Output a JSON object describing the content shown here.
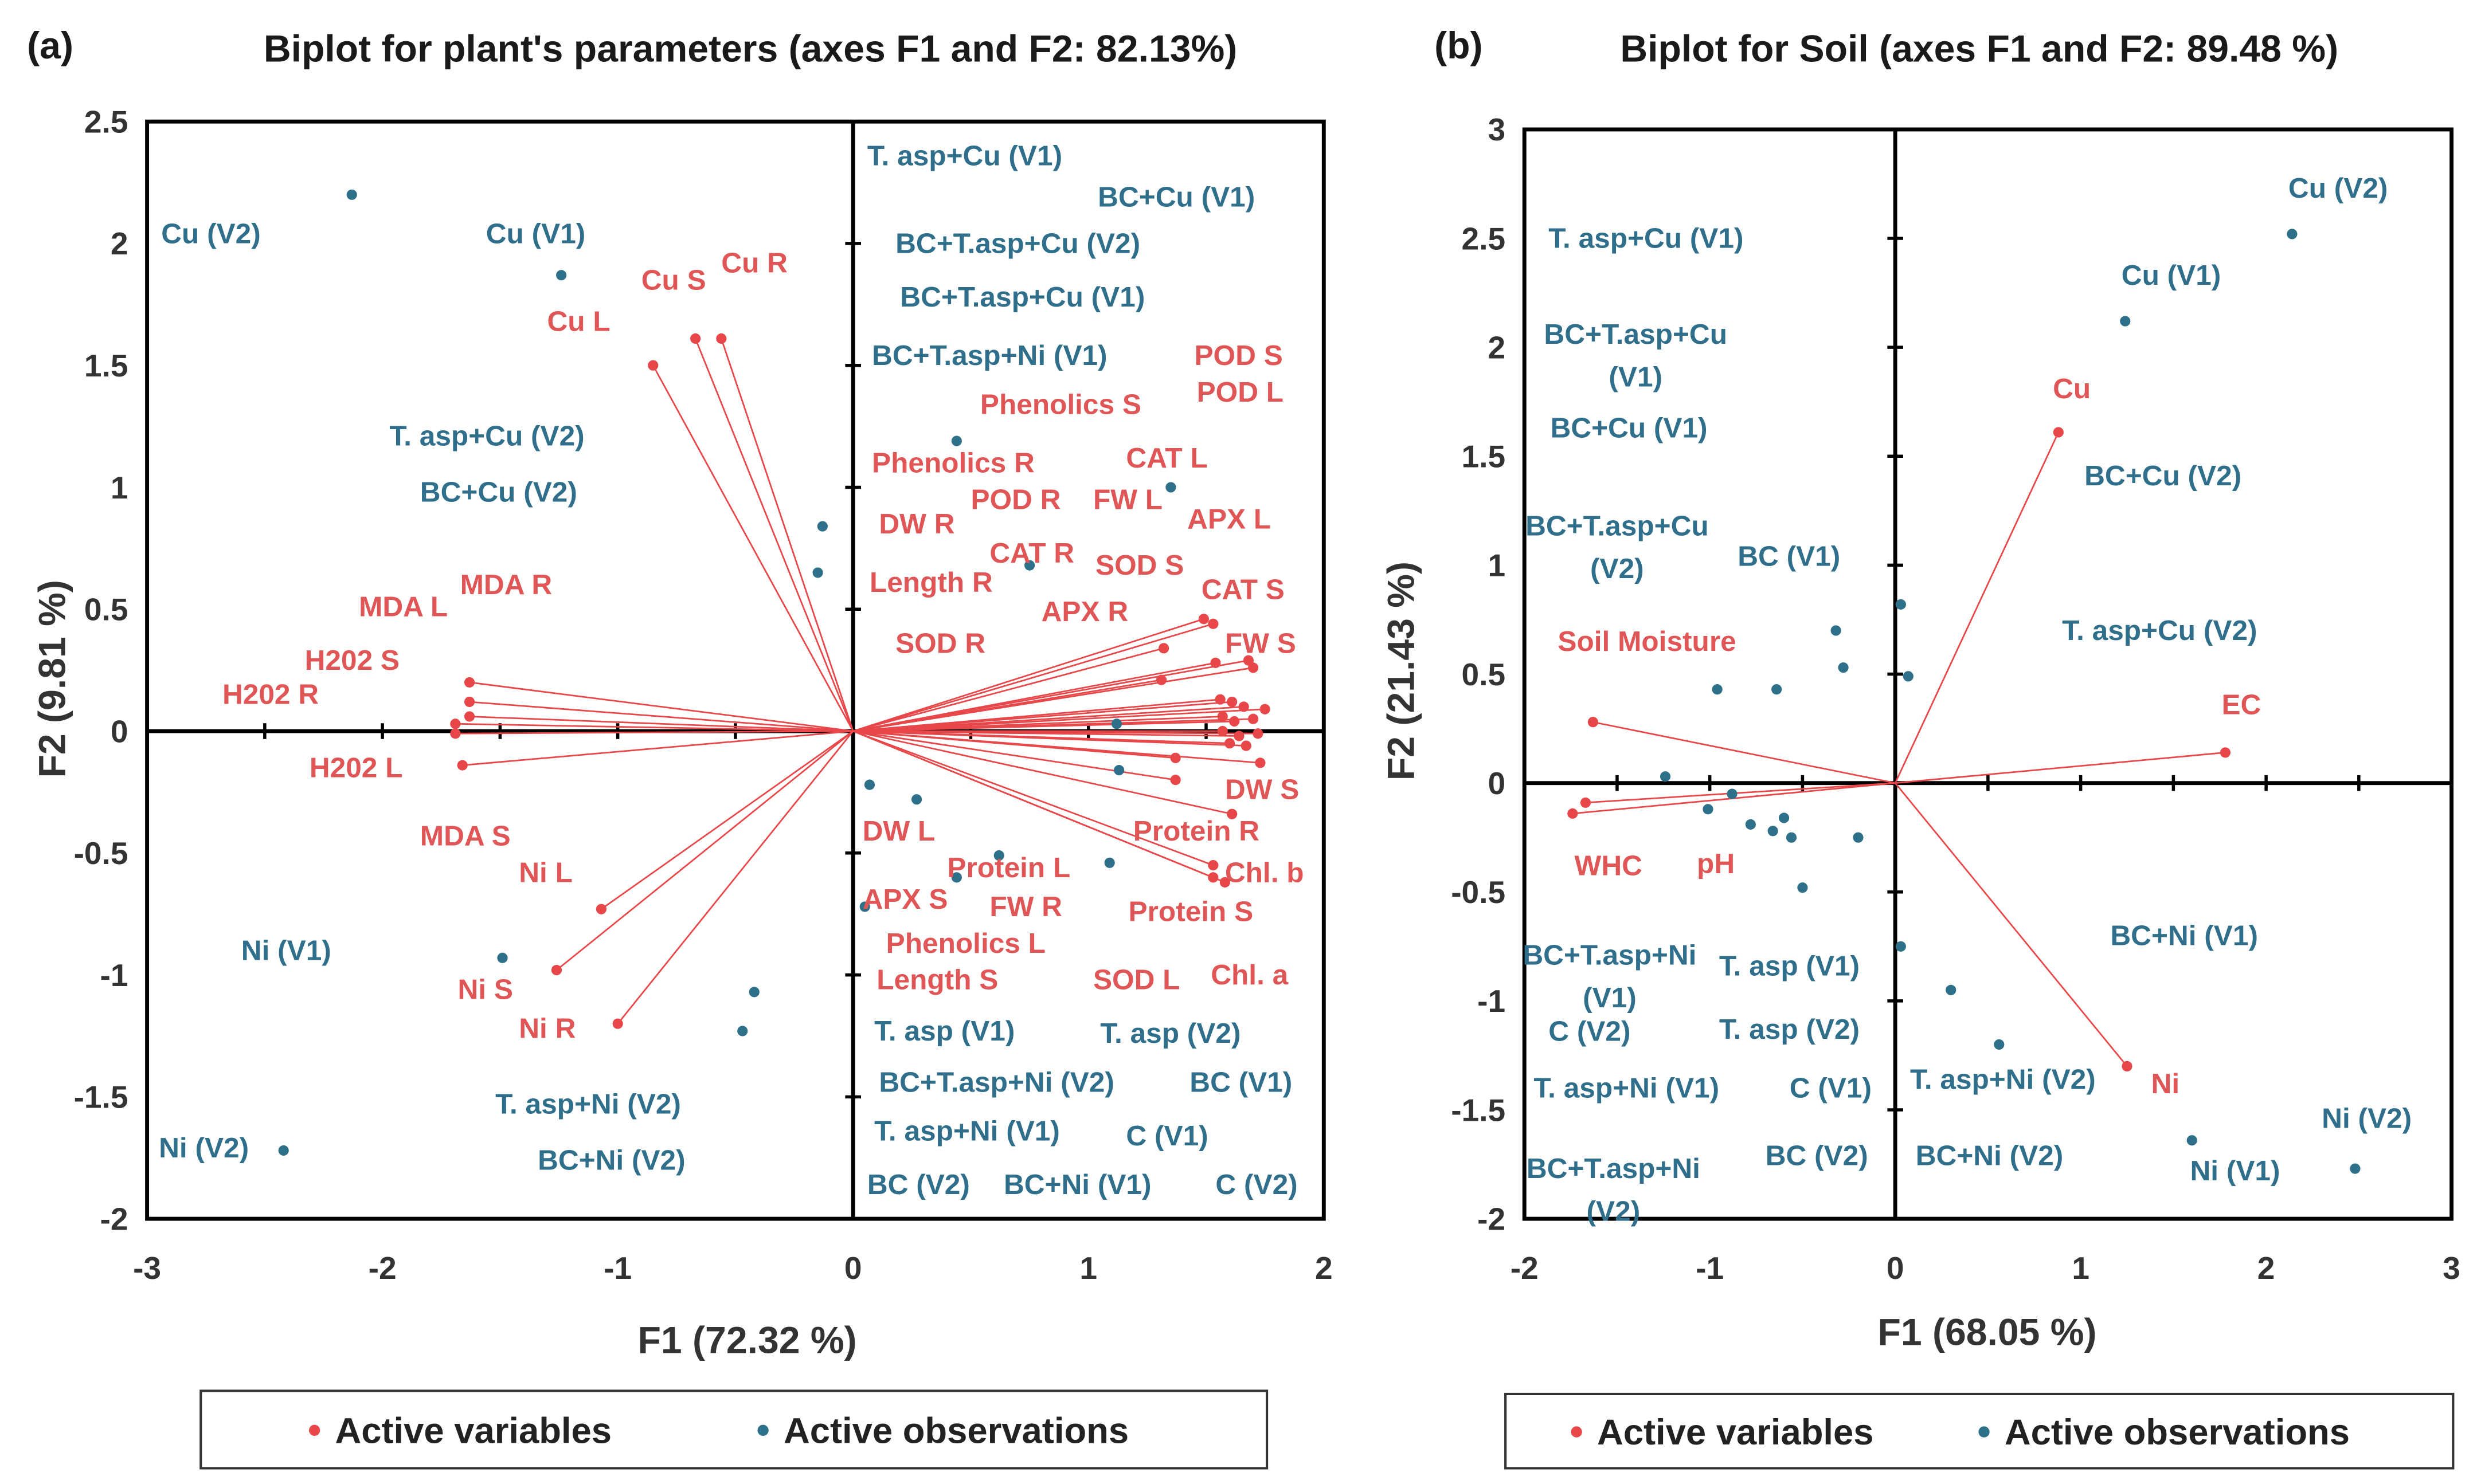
{
  "colors": {
    "variable": "#e8474a",
    "variable_text": "#e05555",
    "observation": "#2e6f8a",
    "observation_text": "#2f6f8c",
    "axis": "#000000"
  },
  "chart_data": [
    {
      "type": "scatter",
      "panel": "(a)",
      "title": "Biplot for plant's parameters (axes F1 and F2: 82.13%)",
      "xlabel": "F1 (72.32 %)",
      "ylabel": "F2 (9.81 %)",
      "xlim": [
        -3,
        2
      ],
      "ylim": [
        -2,
        2.5
      ],
      "xticks": [
        -3,
        -2,
        -1,
        0,
        1,
        2
      ],
      "yticks": [
        -2,
        -1.5,
        -1,
        -0.5,
        0,
        0.5,
        1,
        1.5,
        2,
        2.5
      ],
      "minor_step_x": 0.5,
      "minor_step_y": 0.5,
      "legend": {
        "position": "bottom",
        "items": [
          "Active variables",
          "Active observations"
        ]
      },
      "variables": [
        [
          -0.85,
          1.5
        ],
        [
          -0.67,
          1.61
        ],
        [
          -0.56,
          1.61
        ],
        [
          -1.63,
          0.2
        ],
        [
          -1.63,
          0.12
        ],
        [
          -1.63,
          0.06
        ],
        [
          -1.69,
          0.03
        ],
        [
          -1.69,
          -0.01
        ],
        [
          -1.66,
          -0.14
        ],
        [
          -1.07,
          -0.73
        ],
        [
          -1.26,
          -0.98
        ],
        [
          -1.0,
          -1.2
        ],
        [
          1.49,
          0.46
        ],
        [
          1.53,
          0.44
        ],
        [
          1.32,
          0.34
        ],
        [
          1.68,
          0.29
        ],
        [
          1.7,
          0.26
        ],
        [
          1.54,
          0.28
        ],
        [
          1.31,
          0.21
        ],
        [
          1.56,
          0.13
        ],
        [
          1.61,
          0.12
        ],
        [
          1.66,
          0.1
        ],
        [
          1.75,
          0.09
        ],
        [
          1.57,
          0.06
        ],
        [
          1.62,
          0.04
        ],
        [
          1.7,
          0.05
        ],
        [
          1.57,
          0.0
        ],
        [
          1.64,
          -0.02
        ],
        [
          1.72,
          -0.01
        ],
        [
          1.6,
          -0.05
        ],
        [
          1.67,
          -0.06
        ],
        [
          1.73,
          -0.13
        ],
        [
          1.37,
          -0.11
        ],
        [
          1.37,
          -0.2
        ],
        [
          1.61,
          -0.34
        ],
        [
          1.53,
          -0.55
        ],
        [
          1.53,
          -0.6
        ],
        [
          1.58,
          -0.62
        ]
      ],
      "observations": [
        [
          -2.13,
          2.2
        ],
        [
          -1.24,
          1.87
        ],
        [
          -0.13,
          0.84
        ],
        [
          -0.15,
          0.65
        ],
        [
          0.44,
          1.19
        ],
        [
          1.35,
          1.0
        ],
        [
          0.75,
          0.68
        ],
        [
          1.12,
          0.03
        ],
        [
          1.13,
          -0.16
        ],
        [
          0.07,
          -0.22
        ],
        [
          0.27,
          -0.28
        ],
        [
          0.62,
          -0.51
        ],
        [
          0.44,
          -0.6
        ],
        [
          0.05,
          -0.72
        ],
        [
          1.09,
          -0.54
        ],
        [
          -1.49,
          -0.93
        ],
        [
          -0.42,
          -1.07
        ],
        [
          -0.47,
          -1.23
        ],
        [
          -2.42,
          -1.72
        ]
      ],
      "labels": [
        {
          "t": "Cu (V2)",
          "k": "o",
          "at": [
            -2.94,
            2.04
          ]
        },
        {
          "t": "Cu (V1)",
          "k": "o",
          "at": [
            -1.56,
            2.04
          ]
        },
        {
          "t": "Cu S",
          "k": "v",
          "at": [
            -0.9,
            1.85
          ]
        },
        {
          "t": "Cu R",
          "k": "v",
          "at": [
            -0.56,
            1.92
          ]
        },
        {
          "t": "Cu L",
          "k": "v",
          "at": [
            -1.3,
            1.68
          ]
        },
        {
          "t": "T. asp+Cu (V2)",
          "k": "o",
          "at": [
            -1.97,
            1.21
          ]
        },
        {
          "t": "BC+Cu (V2)",
          "k": "o",
          "at": [
            -1.84,
            0.98
          ]
        },
        {
          "t": "MDA  R",
          "k": "v",
          "at": [
            -1.67,
            0.6
          ]
        },
        {
          "t": "MDA  L",
          "k": "v",
          "at": [
            -2.1,
            0.51
          ]
        },
        {
          "t": "H202  S",
          "k": "v",
          "at": [
            -2.33,
            0.29
          ]
        },
        {
          "t": "H202  R",
          "k": "v",
          "at": [
            -2.68,
            0.15
          ]
        },
        {
          "t": "H202  L",
          "k": "v",
          "at": [
            -2.31,
            -0.15
          ]
        },
        {
          "t": "MDA  S",
          "k": "v",
          "at": [
            -1.84,
            -0.43
          ]
        },
        {
          "t": "Ni  L",
          "k": "v",
          "at": [
            -1.42,
            -0.58
          ]
        },
        {
          "t": "Ni (V1)",
          "k": "o",
          "at": [
            -2.6,
            -0.9
          ]
        },
        {
          "t": "Ni  S",
          "k": "v",
          "at": [
            -1.68,
            -1.06
          ]
        },
        {
          "t": "Ni  R",
          "k": "v",
          "at": [
            -1.42,
            -1.22
          ]
        },
        {
          "t": "T. asp+Ni (V2)",
          "k": "o",
          "at": [
            -1.52,
            -1.53
          ]
        },
        {
          "t": "BC+Ni (V2)",
          "k": "o",
          "at": [
            -1.34,
            -1.76
          ]
        },
        {
          "t": "Ni (V2)",
          "k": "o",
          "at": [
            -2.95,
            -1.71
          ]
        },
        {
          "t": "T. asp+Cu  (V1)",
          "k": "o",
          "at": [
            0.06,
            2.36
          ]
        },
        {
          "t": "BC+Cu  (V1)",
          "k": "o",
          "at": [
            1.04,
            2.19
          ]
        },
        {
          "t": "BC+T.asp+Cu  (V2)",
          "k": "o",
          "at": [
            0.18,
            2.0
          ]
        },
        {
          "t": "BC+T.asp+Cu  (V1)",
          "k": "o",
          "at": [
            0.2,
            1.78
          ]
        },
        {
          "t": "BC+T.asp+Ni  (V1)",
          "k": "o",
          "at": [
            0.08,
            1.54
          ]
        },
        {
          "t": "POD  S",
          "k": "v",
          "at": [
            1.45,
            1.54
          ]
        },
        {
          "t": "POD  L",
          "k": "v",
          "at": [
            1.46,
            1.39
          ]
        },
        {
          "t": "Phenolics  S",
          "k": "v",
          "at": [
            0.54,
            1.34
          ]
        },
        {
          "t": "Phenolics  R",
          "k": "v",
          "at": [
            0.08,
            1.1
          ]
        },
        {
          "t": "CAT  L",
          "k": "v",
          "at": [
            1.16,
            1.12
          ]
        },
        {
          "t": "DW  R",
          "k": "v",
          "at": [
            0.11,
            0.85
          ]
        },
        {
          "t": "POD  R",
          "k": "v",
          "at": [
            0.5,
            0.95
          ]
        },
        {
          "t": "FW  L",
          "k": "v",
          "at": [
            1.02,
            0.95
          ]
        },
        {
          "t": "APX  L",
          "k": "v",
          "at": [
            1.42,
            0.87
          ]
        },
        {
          "t": "CAT  R",
          "k": "v",
          "at": [
            0.58,
            0.73
          ]
        },
        {
          "t": "SOD  S",
          "k": "v",
          "at": [
            1.03,
            0.68
          ]
        },
        {
          "t": "Length  R",
          "k": "v",
          "at": [
            0.07,
            0.61
          ]
        },
        {
          "t": "CAT  S",
          "k": "v",
          "at": [
            1.48,
            0.58
          ]
        },
        {
          "t": "APX  R",
          "k": "v",
          "at": [
            0.8,
            0.49
          ]
        },
        {
          "t": "FW  S",
          "k": "v",
          "at": [
            1.58,
            0.36
          ]
        },
        {
          "t": "SOD  R",
          "k": "v",
          "at": [
            0.18,
            0.36
          ]
        },
        {
          "t": "DW  S",
          "k": "v",
          "at": [
            1.58,
            -0.24
          ]
        },
        {
          "t": "DW  L",
          "k": "v",
          "at": [
            0.04,
            -0.41
          ]
        },
        {
          "t": "Protein  R",
          "k": "v",
          "at": [
            1.19,
            -0.41
          ]
        },
        {
          "t": "Chl. b",
          "k": "v",
          "at": [
            1.58,
            -0.58
          ]
        },
        {
          "t": "Protein  L",
          "k": "v",
          "at": [
            0.4,
            -0.56
          ]
        },
        {
          "t": "APX  S",
          "k": "v",
          "at": [
            0.04,
            -0.69
          ]
        },
        {
          "t": "FW  R",
          "k": "v",
          "at": [
            0.58,
            -0.72
          ]
        },
        {
          "t": "Protein  S",
          "k": "v",
          "at": [
            1.17,
            -0.74
          ]
        },
        {
          "t": "Phenolics  L",
          "k": "v",
          "at": [
            0.14,
            -0.87
          ]
        },
        {
          "t": "Length  S",
          "k": "v",
          "at": [
            0.1,
            -1.02
          ]
        },
        {
          "t": "SOD  L",
          "k": "v",
          "at": [
            1.02,
            -1.02
          ]
        },
        {
          "t": "Chl.  a",
          "k": "v",
          "at": [
            1.52,
            -1.0
          ]
        },
        {
          "t": "T. asp  (V1)",
          "k": "o",
          "at": [
            0.09,
            -1.23
          ]
        },
        {
          "t": "T. asp  (V2)",
          "k": "o",
          "at": [
            1.05,
            -1.24
          ]
        },
        {
          "t": "BC+T.asp+Ni  (V2)",
          "k": "o",
          "at": [
            0.11,
            -1.44
          ]
        },
        {
          "t": "BC  (V1)",
          "k": "o",
          "at": [
            1.43,
            -1.44
          ]
        },
        {
          "t": "T. asp+Ni  (V1)",
          "k": "o",
          "at": [
            0.09,
            -1.64
          ]
        },
        {
          "t": "C  (V1)",
          "k": "o",
          "at": [
            1.16,
            -1.66
          ]
        },
        {
          "t": "BC  (V2)",
          "k": "o",
          "at": [
            0.06,
            -1.86
          ]
        },
        {
          "t": "BC+Ni  (V1)",
          "k": "o",
          "at": [
            0.64,
            -1.86
          ]
        },
        {
          "t": "C  (V2)",
          "k": "o",
          "at": [
            1.54,
            -1.86
          ]
        }
      ]
    },
    {
      "type": "scatter",
      "panel": "(b)",
      "title": "Biplot for Soil (axes F1 and F2: 89.48 %)",
      "xlabel": "F1 (68.05 %)",
      "ylabel": "F2 (21.43 %)",
      "xlim": [
        -2,
        3
      ],
      "ylim": [
        -2,
        3
      ],
      "xticks": [
        -2,
        -1,
        0,
        1,
        2,
        3
      ],
      "yticks": [
        -2,
        -1.5,
        -1,
        -0.5,
        0,
        0.5,
        1,
        1.5,
        2,
        2.5,
        3
      ],
      "minor_step_x": 0.5,
      "minor_step_y": 0.5,
      "legend": {
        "position": "bottom",
        "items": [
          "Active variables",
          "Active observations"
        ]
      },
      "variables": [
        [
          0.88,
          1.61
        ],
        [
          1.78,
          0.14
        ],
        [
          1.25,
          -1.3
        ],
        [
          -1.63,
          0.28
        ],
        [
          -1.74,
          -0.14
        ],
        [
          -1.67,
          -0.09
        ]
      ],
      "observations": [
        [
          2.14,
          2.52
        ],
        [
          1.24,
          2.12
        ],
        [
          0.03,
          0.82
        ],
        [
          -0.32,
          0.7
        ],
        [
          -0.28,
          0.53
        ],
        [
          0.07,
          0.49
        ],
        [
          -0.96,
          0.43
        ],
        [
          -0.64,
          0.43
        ],
        [
          -1.24,
          0.03
        ],
        [
          -0.88,
          -0.05
        ],
        [
          -1.01,
          -0.12
        ],
        [
          -0.78,
          -0.19
        ],
        [
          -0.66,
          -0.22
        ],
        [
          -0.6,
          -0.16
        ],
        [
          -0.56,
          -0.25
        ],
        [
          -0.2,
          -0.25
        ],
        [
          -0.5,
          -0.48
        ],
        [
          0.03,
          -0.75
        ],
        [
          0.3,
          -0.95
        ],
        [
          0.56,
          -1.2
        ],
        [
          1.6,
          -1.64
        ],
        [
          2.48,
          -1.77
        ]
      ],
      "labels": [
        {
          "t": "Cu (V2)",
          "k": "o",
          "at": [
            2.12,
            2.73
          ]
        },
        {
          "t": "Cu (V1)",
          "k": "o",
          "at": [
            1.22,
            2.33
          ]
        },
        {
          "t": "T. asp+Cu  (V1)",
          "k": "o",
          "at": [
            -1.87,
            2.5
          ]
        },
        {
          "t": "BC+T.asp+Cu|(V1)",
          "k": "o",
          "at": [
            -1.85,
            2.06
          ]
        },
        {
          "t": "Cu",
          "k": "v",
          "at": [
            0.85,
            1.81
          ]
        },
        {
          "t": "BC+Cu  (V1)",
          "k": "o",
          "at": [
            -1.86,
            1.63
          ]
        },
        {
          "t": "BC+Cu  (V2)",
          "k": "o",
          "at": [
            1.02,
            1.41
          ]
        },
        {
          "t": "BC+T.asp+Cu|(V2)",
          "k": "o",
          "at": [
            -1.95,
            1.18
          ]
        },
        {
          "t": "BC  (V1)",
          "k": "o",
          "at": [
            -0.85,
            1.04
          ]
        },
        {
          "t": "T. asp+Cu  (V2)",
          "k": "o",
          "at": [
            0.9,
            0.7
          ]
        },
        {
          "t": "Soil  Moisture",
          "k": "v",
          "at": [
            -1.82,
            0.65
          ]
        },
        {
          "t": "EC",
          "k": "v",
          "at": [
            1.76,
            0.36
          ]
        },
        {
          "t": "WHC",
          "k": "v",
          "at": [
            -1.73,
            -0.38
          ]
        },
        {
          "t": "pH",
          "k": "v",
          "at": [
            -1.07,
            -0.37
          ]
        },
        {
          "t": "BC+T.asp+Ni|(V1)",
          "k": "o",
          "at": [
            -1.99,
            -0.79
          ]
        },
        {
          "t": "BC+Ni  (V1)",
          "k": "o",
          "at": [
            1.16,
            -0.7
          ]
        },
        {
          "t": "T. asp  (V1)",
          "k": "o",
          "at": [
            -0.95,
            -0.84
          ]
        },
        {
          "t": "C  (V2)",
          "k": "o",
          "at": [
            -1.87,
            -1.14
          ]
        },
        {
          "t": "T. asp  (V2)",
          "k": "o",
          "at": [
            -0.95,
            -1.13
          ]
        },
        {
          "t": "T. asp+Ni  (V1)",
          "k": "o",
          "at": [
            -1.95,
            -1.4
          ]
        },
        {
          "t": "C  (V1)",
          "k": "o",
          "at": [
            -0.57,
            -1.4
          ]
        },
        {
          "t": "T. asp+Ni  (V2)",
          "k": "o",
          "at": [
            0.08,
            -1.36
          ]
        },
        {
          "t": "Ni",
          "k": "v",
          "at": [
            1.38,
            -1.38
          ]
        },
        {
          "t": "Ni (V2)",
          "k": "o",
          "at": [
            2.3,
            -1.54
          ]
        },
        {
          "t": "BC+T.asp+Ni|(V2)",
          "k": "o",
          "at": [
            -1.97,
            -1.77
          ]
        },
        {
          "t": "BC  (V2)",
          "k": "o",
          "at": [
            -0.7,
            -1.71
          ]
        },
        {
          "t": "BC+Ni  (V2)",
          "k": "o",
          "at": [
            0.11,
            -1.71
          ]
        },
        {
          "t": "Ni (V1)",
          "k": "o",
          "at": [
            1.59,
            -1.78
          ]
        }
      ]
    }
  ]
}
